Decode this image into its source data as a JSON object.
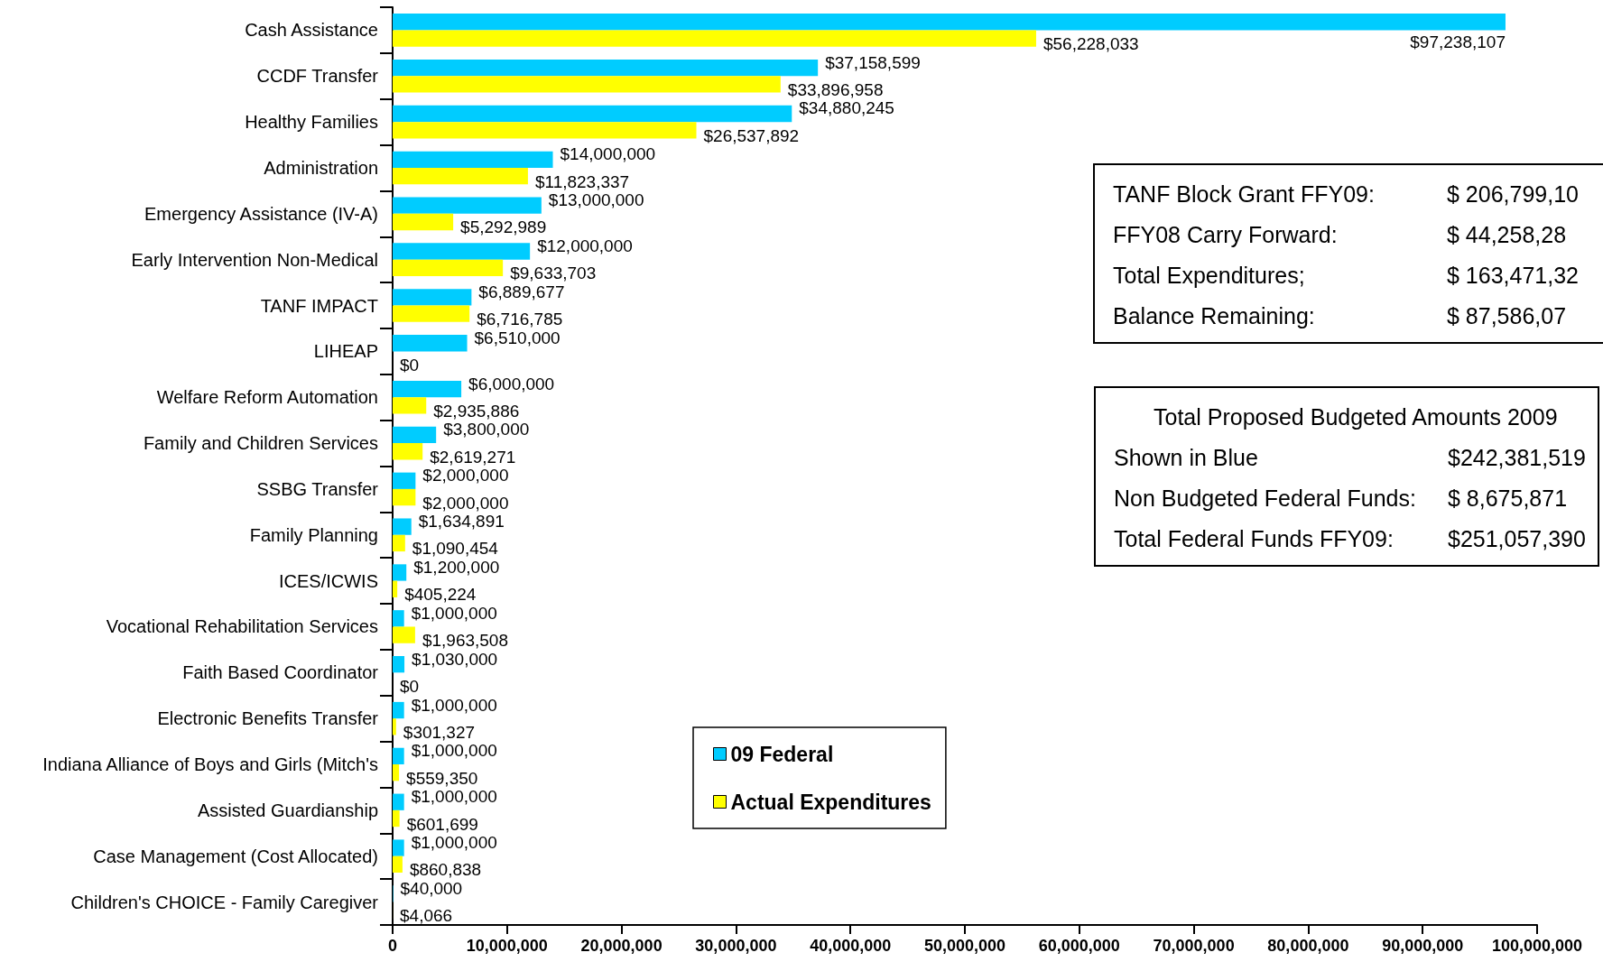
{
  "chart_data": {
    "type": "bar",
    "orientation": "horizontal",
    "categories": [
      "Cash Assistance",
      "CCDF Transfer",
      "Healthy Families",
      "Administration",
      "Emergency Assistance (IV-A)",
      "Early Intervention Non-Medical",
      "TANF IMPACT",
      "LIHEAP",
      "Welfare Reform Automation",
      "Family and Children Services",
      "SSBG Transfer",
      "Family Planning",
      "ICES/ICWIS",
      "Vocational Rehabilitation Services",
      "Faith Based Coordinator",
      "Electronic Benefits Transfer",
      "Indiana Alliance of Boys and Girls (Mitch's",
      "Assisted Guardianship",
      "Case Management (Cost Allocated)",
      "Children's CHOICE - Family Caregiver"
    ],
    "series": [
      {
        "name": "09 Federal",
        "color": "#00ccff",
        "values": [
          97238107,
          37158599,
          34880245,
          14000000,
          13000000,
          12000000,
          6889677,
          6510000,
          6000000,
          3800000,
          2000000,
          1634891,
          1200000,
          1000000,
          1030000,
          1000000,
          1000000,
          1000000,
          1000000,
          40000
        ],
        "value_labels": [
          "$97,238,107",
          "$37,158,599",
          "$34,880,245",
          "$14,000,000",
          "$13,000,000",
          "$12,000,000",
          "$6,889,677",
          "$6,510,000",
          "$6,000,000",
          "$3,800,000",
          "$2,000,000",
          "$1,634,891",
          "$1,200,000",
          "$1,000,000",
          "$1,030,000",
          "$1,000,000",
          "$1,000,000",
          "$1,000,000",
          "$1,000,000",
          "$40,000"
        ]
      },
      {
        "name": "Actual Expenditures",
        "color": "#ffff00",
        "values": [
          56228033,
          33896958,
          26537892,
          11823337,
          5292989,
          9633703,
          6716785,
          0,
          2935886,
          2619271,
          2000000,
          1090454,
          405224,
          1963508,
          0,
          301327,
          559350,
          601699,
          860838,
          4066
        ],
        "value_labels": [
          "$56,228,033",
          "$33,896,958",
          "$26,537,892",
          "$11,823,337",
          "$5,292,989",
          "$9,633,703",
          "$6,716,785",
          "$0",
          "$2,935,886",
          "$2,619,271",
          "$2,000,000",
          "$1,090,454",
          "$405,224",
          "$1,963,508",
          "$0",
          "$301,327",
          "$559,350",
          "$601,699",
          "$860,838",
          "$4,066"
        ]
      }
    ],
    "xlim": [
      0,
      100000000
    ],
    "xticks": [
      0,
      {
        "value": 10000000,
        "label": "10,000,000"
      },
      {
        "value": 20000000,
        "label": "20,000,000"
      },
      {
        "value": 30000000,
        "label": "30,000,000"
      },
      {
        "value": 40000000,
        "label": "40,000,000"
      },
      {
        "value": 50000000,
        "label": "50,000,000"
      },
      {
        "value": 60000000,
        "label": "60,000,000"
      },
      {
        "value": 70000000,
        "label": "70,000,000"
      },
      {
        "value": 80000000,
        "label": "80,000,000"
      },
      {
        "value": 90000000,
        "label": "90,000,000"
      },
      {
        "value": 100000000,
        "label": "100,000,000"
      }
    ],
    "grid": false,
    "legend": "bottom",
    "annotations": [
      "TANF Block Grant FFY09:",
      "$ 206,799,10",
      "FFY08 Carry Forward:",
      "$ 44,258,28",
      "Total Expenditures;",
      "$ 163,471,32",
      "Balance Remaining:",
      "$ 87,586,07",
      "Total Proposed Budgeted Amounts 2009",
      "Shown in Blue",
      "$242,381,519",
      "Non Budgeted Federal Funds:",
      "$ 8,675,871",
      "Total Federal Funds FFY09:",
      "$251,057,390"
    ]
  }
}
